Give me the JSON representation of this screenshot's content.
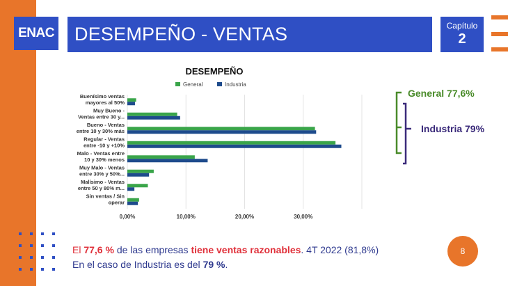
{
  "header": {
    "logo_text": "ENAC",
    "title": "DESEMPEÑO - VENTAS",
    "chapter_label": "Capítulo",
    "chapter_number": "2"
  },
  "annotations": {
    "general": "General 77,6%",
    "industria": "Industria 79%"
  },
  "summary": {
    "line1": {
      "p1": "El ",
      "p2": "77,6 %",
      "p3": " de las empresas ",
      "p4": "tiene ventas razonables",
      "p5": ". 4T 2022 (81,8%)"
    },
    "line2": {
      "p1": "En el caso de Industria es del ",
      "p2": "79 %",
      "p3": "."
    }
  },
  "page_number": "8",
  "colors": {
    "brand_blue": "#2f4fc4",
    "orange": "#e8752a",
    "general_green": "#3aa54a",
    "industria_navy": "#1e4b8c",
    "annotation_green": "#4a8b2a",
    "annotation_purple": "#3a2a7a",
    "highlight_red": "#e0303a"
  },
  "chart_data": {
    "type": "bar",
    "orientation": "horizontal",
    "title": "DESEMPEÑO",
    "categories": [
      [
        "Buenísimo ventas",
        "mayores al 50%"
      ],
      [
        "Muy Bueno -",
        "Ventas entre 30 y..."
      ],
      [
        "Bueno - Ventas",
        "entre 10 y 30% más"
      ],
      [
        "Regular - Ventas",
        "entre -10 y +10%"
      ],
      [
        "Malo - Ventas entre",
        "10 y 30% menos"
      ],
      [
        "Muy Malo - Ventas",
        "entre 30% y 50%..."
      ],
      [
        "Malísimo - Ventas",
        "entre 50 y 80% m..."
      ],
      [
        "Sin ventas / Sin",
        "operar"
      ]
    ],
    "series": [
      {
        "name": "General",
        "values": [
          1.5,
          8.5,
          32.0,
          35.5,
          11.5,
          4.5,
          3.5,
          2.0
        ]
      },
      {
        "name": "Industria",
        "values": [
          1.3,
          9.0,
          32.2,
          36.5,
          13.7,
          3.7,
          1.2,
          1.8
        ]
      }
    ],
    "xlim": [
      0,
      40
    ],
    "xticks": [
      "0,00%",
      "10,00%",
      "20,00%",
      "30,00%"
    ],
    "xtick_values": [
      0,
      10,
      20,
      30
    ],
    "grid": true,
    "legend_position": "top"
  }
}
